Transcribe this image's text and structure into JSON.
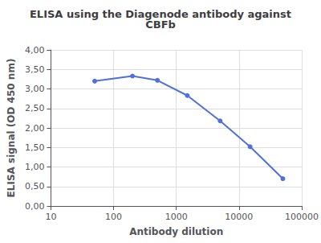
{
  "chart_data": {
    "type": "line",
    "title": "ELISA using the Diagenode antibody against\nCBFb",
    "xlabel": "Antibody dilution",
    "ylabel": "ELISA signal (OD 450 nm)",
    "x": [
      50,
      200,
      500,
      1500,
      5000,
      15000,
      50000
    ],
    "values": [
      3.2,
      3.33,
      3.22,
      2.83,
      2.18,
      1.52,
      0.7
    ],
    "log": "x",
    "xlim": [
      10,
      100000
    ],
    "ylim": [
      0,
      4.0
    ],
    "xticks": [
      10,
      100,
      1000,
      10000,
      100000
    ],
    "yticks": [
      {
        "value": 0.0,
        "label": "0,00"
      },
      {
        "value": 0.5,
        "label": "0,50"
      },
      {
        "value": 1.0,
        "label": "1,00"
      },
      {
        "value": 1.5,
        "label": "1,50"
      },
      {
        "value": 2.0,
        "label": "2,00"
      },
      {
        "value": 2.5,
        "label": "2,50"
      },
      {
        "value": 3.0,
        "label": "3,00"
      },
      {
        "value": 3.5,
        "label": "3,50"
      },
      {
        "value": 4.0,
        "label": "4,00"
      }
    ],
    "grid": true,
    "marker": "circle"
  }
}
